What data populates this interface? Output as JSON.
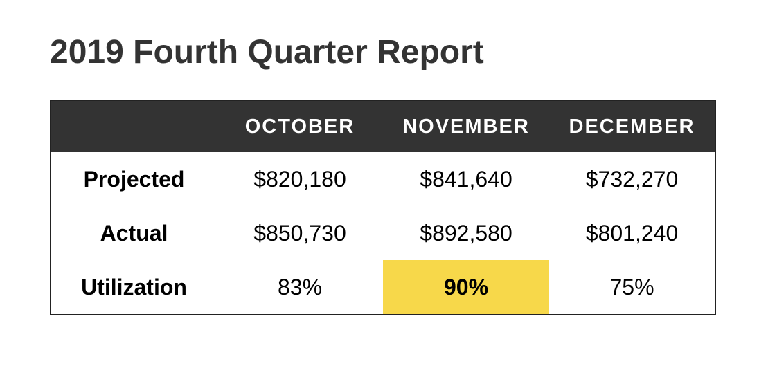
{
  "header": {
    "title": "2019 Fourth Quarter Report"
  },
  "table": {
    "columns": [
      "",
      "OCTOBER",
      "NOVEMBER",
      "DECEMBER"
    ],
    "rows": [
      [
        "Projected",
        "$820,180",
        "$841,640",
        "$732,270"
      ],
      [
        "Actual",
        "$850,730",
        "$892,580",
        "$801,240"
      ],
      [
        "Utilization",
        "83%",
        "90%",
        "75%"
      ]
    ],
    "highlight": {
      "row": 2,
      "col": 2
    }
  }
}
